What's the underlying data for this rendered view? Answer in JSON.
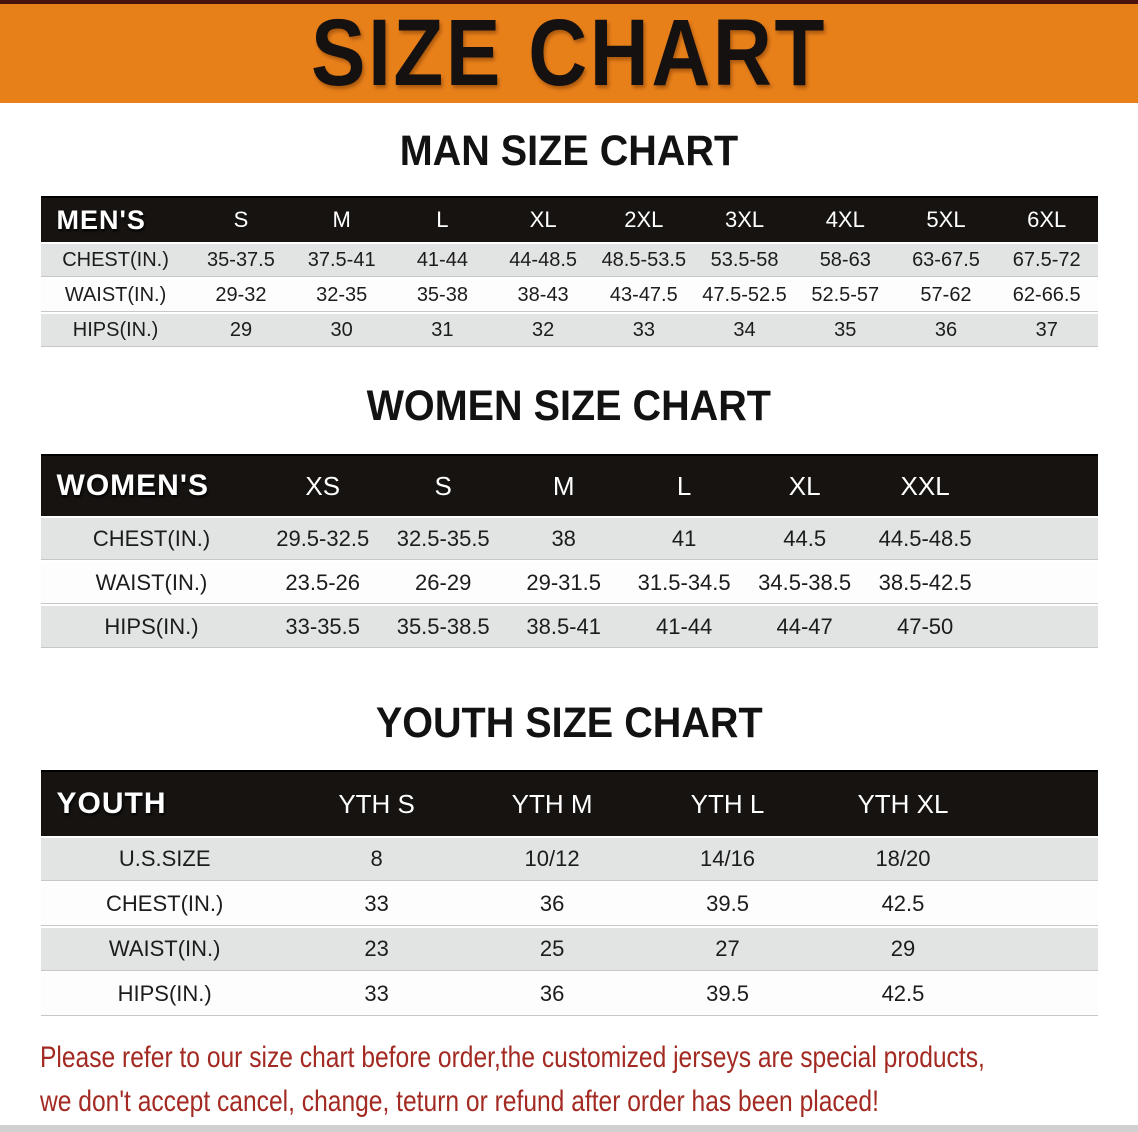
{
  "banner": {
    "title": "SIZE CHART"
  },
  "sections": [
    {
      "heading": "MAN SIZE CHART",
      "header_label": "MEN'S",
      "columns": [
        "S",
        "M",
        "L",
        "XL",
        "2XL",
        "3XL",
        "4XL",
        "5XL",
        "6XL"
      ],
      "rows": [
        {
          "label": "CHEST(IN.)",
          "values": [
            "35-37.5",
            "37.5-41",
            "41-44",
            "44-48.5",
            "48.5-53.5",
            "53.5-58",
            "58-63",
            "63-67.5",
            "67.5-72"
          ]
        },
        {
          "label": "WAIST(IN.)",
          "values": [
            "29-32",
            "32-35",
            "35-38",
            "38-43",
            "43-47.5",
            "47.5-52.5",
            "52.5-57",
            "57-62",
            "62-66.5"
          ]
        },
        {
          "label": "HIPS(IN.)",
          "values": [
            "29",
            "30",
            "31",
            "32",
            "33",
            "34",
            "35",
            "36",
            "37"
          ]
        }
      ]
    },
    {
      "heading": "WOMEN SIZE CHART",
      "header_label": "WOMEN'S",
      "columns": [
        "XS",
        "S",
        "M",
        "L",
        "XL",
        "XXL"
      ],
      "rows": [
        {
          "label": "CHEST(IN.)",
          "values": [
            "29.5-32.5",
            "32.5-35.5",
            "38",
            "41",
            "44.5",
            "44.5-48.5"
          ]
        },
        {
          "label": "WAIST(IN.)",
          "values": [
            "23.5-26",
            "26-29",
            "29-31.5",
            "31.5-34.5",
            "34.5-38.5",
            "38.5-42.5"
          ]
        },
        {
          "label": "HIPS(IN.)",
          "values": [
            "33-35.5",
            "35.5-38.5",
            "38.5-41",
            "41-44",
            "44-47",
            "47-50"
          ]
        }
      ]
    },
    {
      "heading": "YOUTH SIZE CHART",
      "header_label": "YOUTH",
      "columns": [
        "YTH S",
        "YTH M",
        "YTH L",
        "YTH XL"
      ],
      "rows": [
        {
          "label": "U.S.SIZE",
          "values": [
            "8",
            "10/12",
            "14/16",
            "18/20"
          ]
        },
        {
          "label": "CHEST(IN.)",
          "values": [
            "33",
            "36",
            "39.5",
            "42.5"
          ]
        },
        {
          "label": "WAIST(IN.)",
          "values": [
            "23",
            "25",
            "27",
            "29"
          ]
        },
        {
          "label": "HIPS(IN.)",
          "values": [
            "33",
            "36",
            "39.5",
            "42.5"
          ]
        }
      ]
    }
  ],
  "footer": {
    "line1": "Please refer to our size chart before order,the customized jerseys are special products,",
    "line2": "we don't accept cancel, change, teturn or refund after order has been placed!"
  },
  "colors": {
    "banner_background": "#e8801a",
    "banner_text": "#141110",
    "table_header_background": "#161311",
    "table_header_text": "#ffffff",
    "shaded_row_background": "#e2e3e3",
    "footer_text": "#a32a22"
  }
}
